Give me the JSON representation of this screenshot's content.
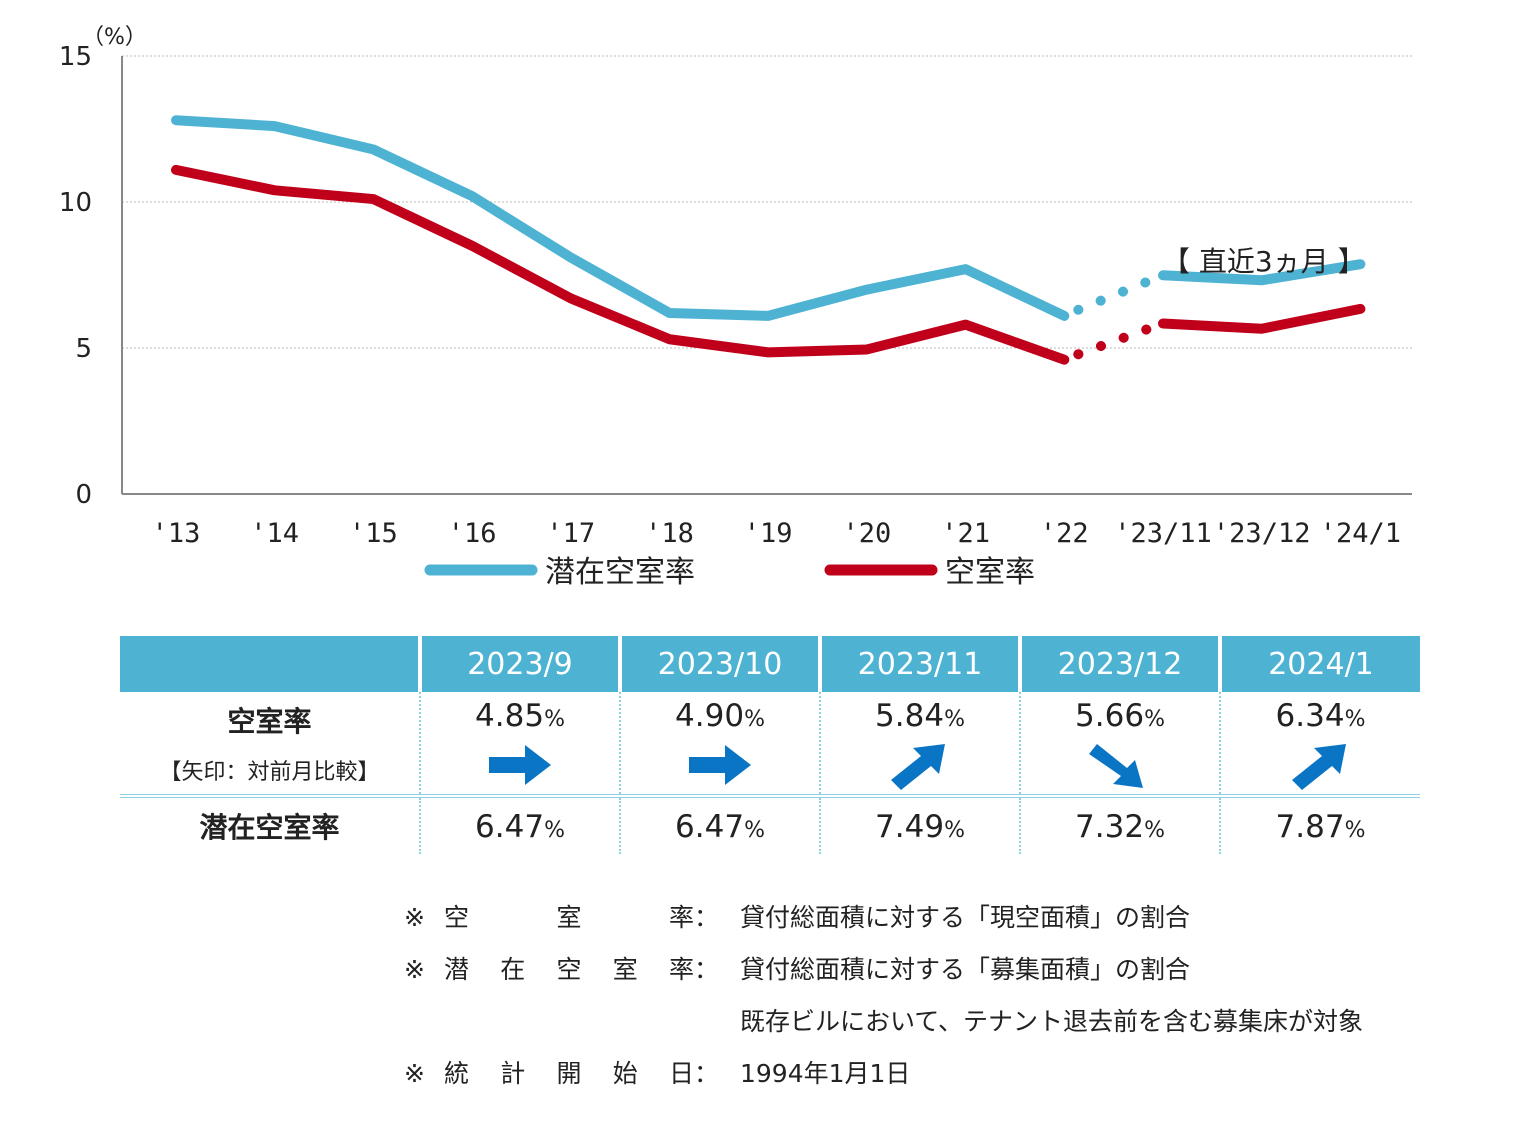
{
  "chart_data": {
    "type": "line",
    "unit_label": "（%）",
    "ylim": [
      0,
      15
    ],
    "yticks": [
      "0",
      "5",
      "10",
      "15"
    ],
    "categories": [
      "'13",
      "'14",
      "'15",
      "'16",
      "'17",
      "'18",
      "'19",
      "'20",
      "'21",
      "'22",
      "'23/11",
      "'23/12",
      "'24/1"
    ],
    "series": [
      {
        "name": "潜在空室率",
        "color": "#4eb3d3",
        "values": [
          12.8,
          12.6,
          11.8,
          10.2,
          8.1,
          6.2,
          6.1,
          7.0,
          7.7,
          6.1,
          7.49,
          7.32,
          7.87
        ]
      },
      {
        "name": "空室率",
        "color": "#c0001a",
        "values": [
          11.1,
          10.4,
          10.1,
          8.5,
          6.7,
          5.3,
          4.85,
          4.95,
          5.8,
          4.6,
          5.84,
          5.66,
          6.34
        ]
      }
    ],
    "annotation": "【 直近3ヵ月 】",
    "grid": true
  },
  "table": {
    "headers": [
      "",
      "2023/9",
      "2023/10",
      "2023/11",
      "2023/12",
      "2024/1"
    ],
    "vacancy_label": "空室率",
    "vacancy_sub": "【矢印：対前月比較】",
    "vacancy": [
      "4.85",
      "4.90",
      "5.84",
      "5.66",
      "6.34"
    ],
    "arrows": [
      "right",
      "right",
      "up",
      "down",
      "up"
    ],
    "potential_label": "潜在空室率",
    "potential": [
      "6.47",
      "6.47",
      "7.49",
      "7.32",
      "7.87"
    ],
    "pct": "%"
  },
  "notes": [
    {
      "mark": "※",
      "label": [
        "空",
        "室",
        "率"
      ],
      "colon": "：",
      "text": "貸付総面積に対する「現空面積」の割合"
    },
    {
      "mark": "※",
      "label": [
        "潜",
        "在",
        "空",
        "室",
        "率"
      ],
      "colon": "：",
      "text": "貸付総面積に対する「募集面積」の割合"
    },
    {
      "mark": "",
      "label": [],
      "colon": "",
      "text": "既存ビルにおいて、テナント退去前を含む募集床が対象"
    },
    {
      "mark": "※",
      "label": [
        "統",
        "計",
        "開",
        "始",
        "日"
      ],
      "colon": "：",
      "text": "1994年1月1日"
    }
  ],
  "colors": {
    "header": "#4eb3d3",
    "arrow": "#0a75c4",
    "potential": "#4eb3d3",
    "vacancy": "#c0001a"
  }
}
